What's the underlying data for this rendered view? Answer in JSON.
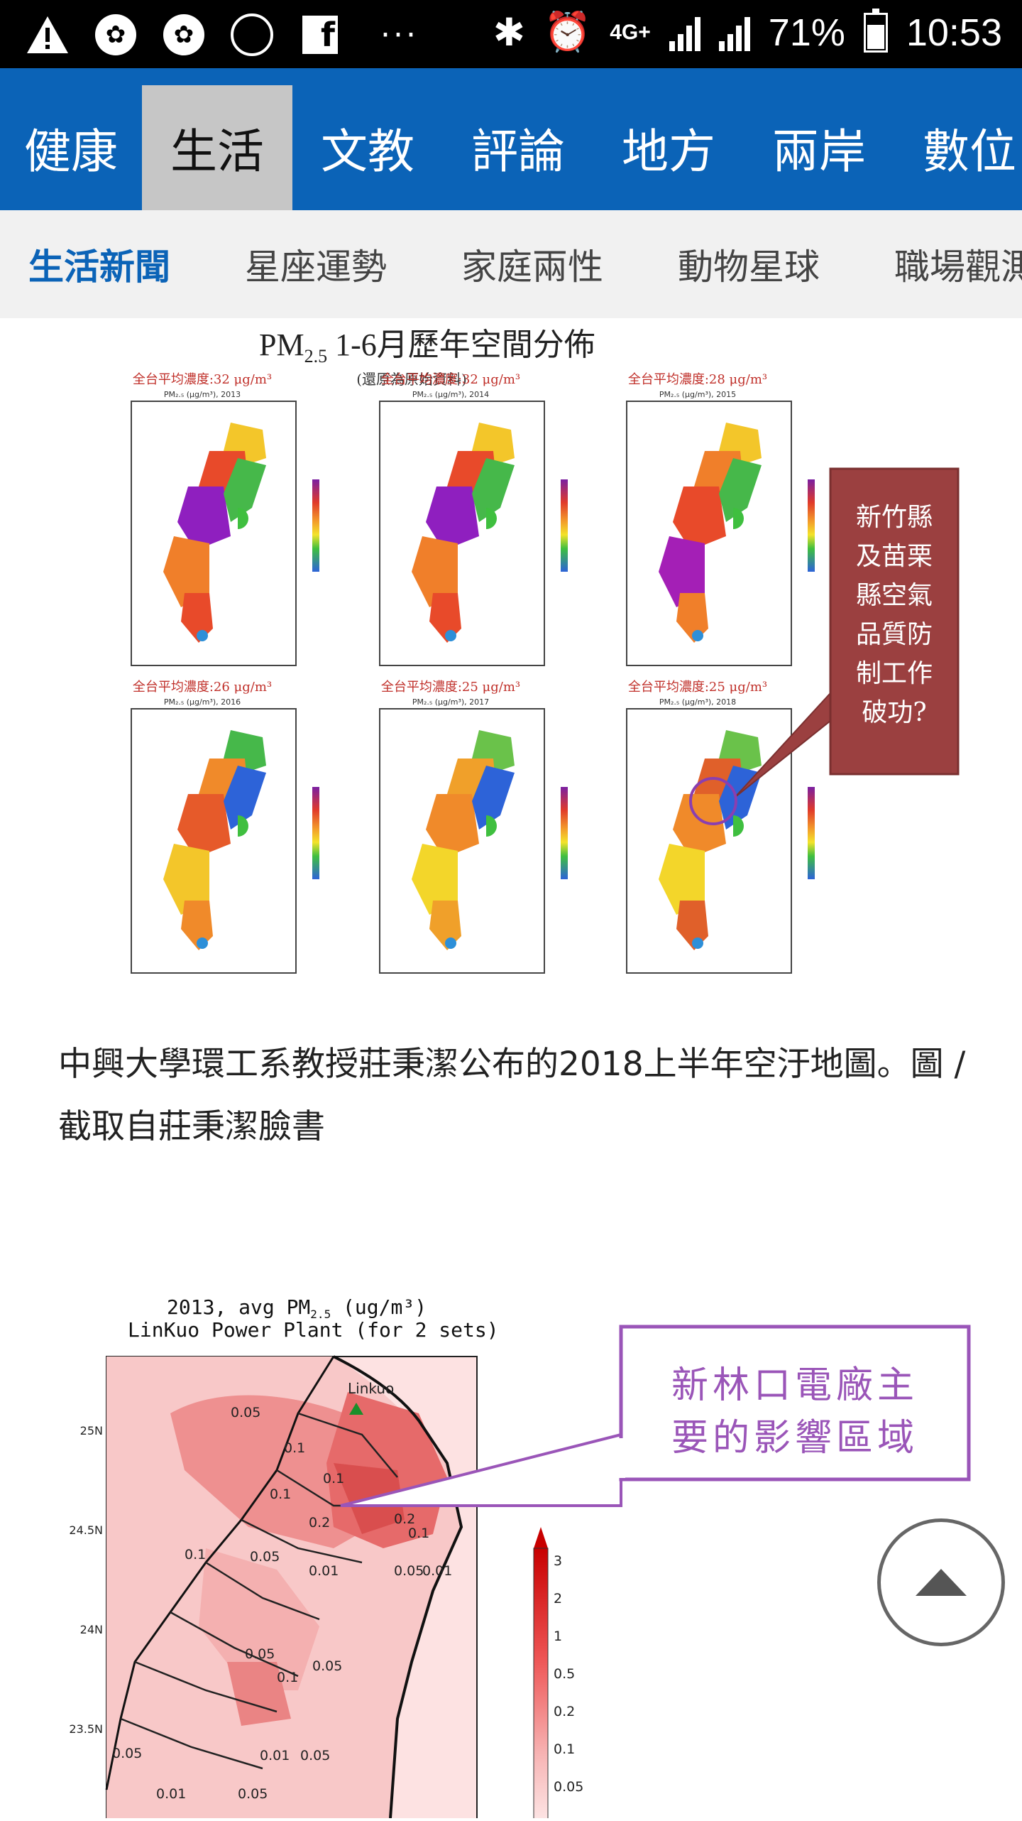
{
  "status_bar": {
    "battery": "71%",
    "time": "10:53",
    "network": "4G+",
    "icons": [
      "warning-icon",
      "app-icon",
      "app-icon",
      "sync-icon",
      "facebook-icon",
      "more-icon",
      "bluetooth-icon",
      "alarm-icon",
      "signal-icon",
      "signal-icon",
      "battery-icon"
    ]
  },
  "categories": [
    {
      "label": "健康",
      "active": false
    },
    {
      "label": "生活",
      "active": true
    },
    {
      "label": "文教",
      "active": false
    },
    {
      "label": "評論",
      "active": false
    },
    {
      "label": "地方",
      "active": false
    },
    {
      "label": "兩岸",
      "active": false
    },
    {
      "label": "數位",
      "active": false
    }
  ],
  "subnav": [
    {
      "label": "生活新聞",
      "active": true
    },
    {
      "label": "星座運勢",
      "active": false
    },
    {
      "label": "家庭兩性",
      "active": false
    },
    {
      "label": "動物星球",
      "active": false
    },
    {
      "label": "職場觀測",
      "active": false
    }
  ],
  "figure1": {
    "title_main": "PM",
    "title_sub": "2.5",
    "title_rest": " 1-6月歷年空間分佈",
    "subtitle": "(還原為原始資料)",
    "panels": [
      {
        "header": "全台平均濃度:32 μg/m³",
        "label": "PM₂.₅ (μg/m³), 2013"
      },
      {
        "header": "全台平均濃度:32 μg/m³",
        "label": "PM₂.₅ (μg/m³), 2014"
      },
      {
        "header": "全台平均濃度:28 μg/m³",
        "label": "PM₂.₅ (μg/m³), 2015"
      },
      {
        "header": "全台平均濃度:26 μg/m³",
        "label": "PM₂.₅ (μg/m³), 2016"
      },
      {
        "header": "全台平均濃度:25 μg/m³",
        "label": "PM₂.₅ (μg/m³), 2017"
      },
      {
        "header": "全台平均濃度:25 μg/m³",
        "label": "PM₂.₅ (μg/m³), 2018"
      }
    ],
    "callout_lines": [
      "新竹縣",
      "及苗栗",
      "縣空氣",
      "品質防",
      "制工作",
      "破功?"
    ]
  },
  "caption": "中興大學環工系教授莊秉潔公布的2018上半年空汙地圖。圖 / 截取自莊秉潔臉書",
  "figure2": {
    "title_line1": "2013, avg PM",
    "title_sub": "2.5",
    "title_unit": " (ug/m³)",
    "title_line2": "LinKuo Power Plant (for 2 sets)",
    "station_label": "Linkuo",
    "lat_labels": [
      "25N",
      "24.5N",
      "24N",
      "23.5N"
    ],
    "contour_labels": [
      "0.05",
      "0.1",
      "0.1",
      "0.1",
      "0.2",
      "0.2",
      "0.1",
      "0.1",
      "0.05",
      "0.01",
      "0.05",
      "0.01",
      "0.05",
      "0.1",
      "0.05",
      "0.05",
      "0.01",
      "0.05",
      "0.01",
      "0.05"
    ],
    "legend_values": [
      "3",
      "2",
      "1",
      "0.5",
      "0.2",
      "0.1",
      "0.05"
    ],
    "callout_lines": [
      "新林口電廠主",
      "要的影響區域"
    ]
  },
  "colors": {
    "brand_blue": "#0b63b7",
    "callout_red": "#9b4040",
    "callout_purple": "#9a55b8"
  }
}
